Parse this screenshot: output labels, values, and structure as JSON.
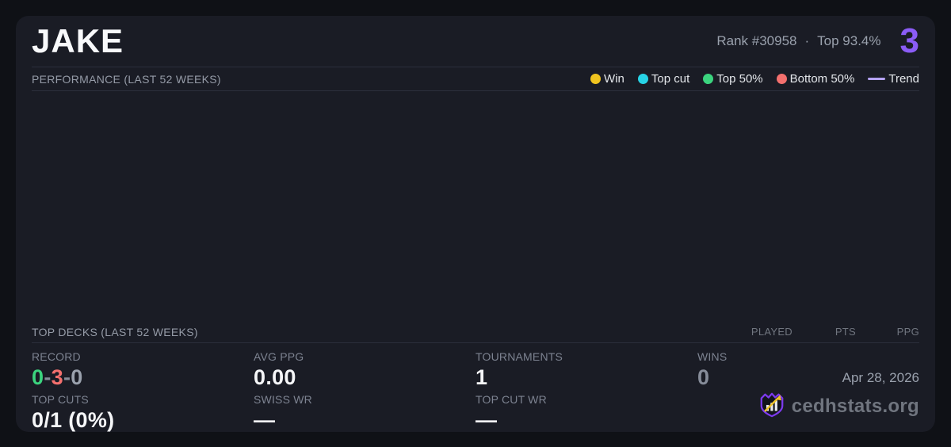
{
  "header": {
    "player_name": "JAKE",
    "rank": "Rank #30958",
    "separator": "·",
    "top_percent": "Top 93.4%",
    "score": "3"
  },
  "performance": {
    "title": "PERFORMANCE (LAST 52 WEEKS)",
    "legend": [
      {
        "label": "Win",
        "color": "#f0c41f",
        "swatch": "dot"
      },
      {
        "label": "Top cut",
        "color": "#27d3e6",
        "swatch": "dot"
      },
      {
        "label": "Top 50%",
        "color": "#3bd47e",
        "swatch": "dot"
      },
      {
        "label": "Bottom 50%",
        "color": "#f4706e",
        "swatch": "dot"
      },
      {
        "label": "Trend",
        "color": "#b5a3f5",
        "swatch": "line"
      }
    ],
    "chart_empty": true
  },
  "top_decks": {
    "title": "TOP DECKS (LAST 52 WEEKS)",
    "columns": [
      "PLAYED",
      "PTS",
      "PPG"
    ],
    "rows": []
  },
  "stats": {
    "record": {
      "label": "RECORD",
      "parts": [
        {
          "text": "0",
          "color": "#3bd47e"
        },
        {
          "text": "-",
          "color": "#868c99"
        },
        {
          "text": "3",
          "color": "#f4706e"
        },
        {
          "text": "-",
          "color": "#868c99"
        },
        {
          "text": "0",
          "color": "#9aa1ad"
        }
      ]
    },
    "avg_ppg": {
      "label": "AVG PPG",
      "value": "0.00"
    },
    "tournaments": {
      "label": "TOURNAMENTS",
      "value": "1"
    },
    "wins": {
      "label": "WINS",
      "value": "0"
    },
    "top_cuts": {
      "label": "TOP CUTS",
      "value": "0/1 (0%)"
    },
    "swiss_wr": {
      "label": "SWISS WR",
      "value": "—"
    },
    "top_cut_wr": {
      "label": "TOP CUT WR",
      "value": "—"
    }
  },
  "footer": {
    "date": "Apr 28, 2026",
    "site": "cedhstats.org"
  },
  "colors": {
    "page_bg": "#0f1116",
    "card_bg": "#1a1c25",
    "divider": "#2b2f3c",
    "accent_purple": "#8b5cf6",
    "logo_purple": "#7c3aed",
    "logo_gold": "#f0c52a"
  }
}
